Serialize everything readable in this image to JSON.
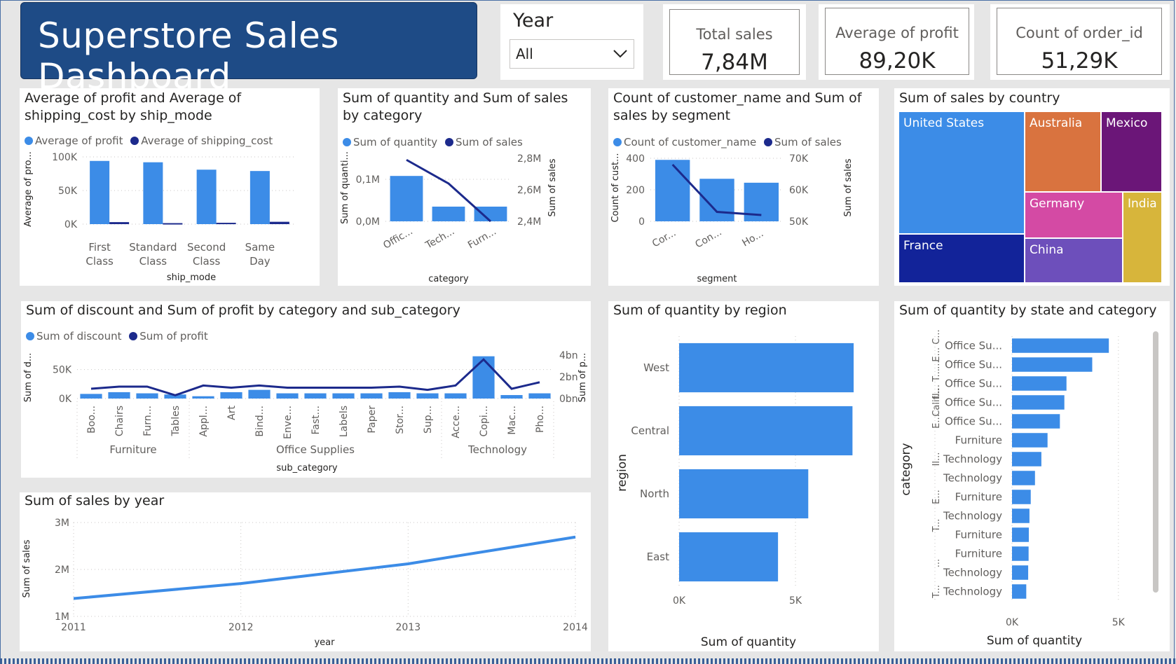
{
  "header": {
    "title": "Superstore Sales Dashboard"
  },
  "slicer": {
    "title": "Year",
    "value": "All"
  },
  "cards": [
    {
      "label": "Total sales",
      "value": "7,84M"
    },
    {
      "label": "Average of profit",
      "value": "89,20K"
    },
    {
      "label": "Count of order_id",
      "value": "51,29K"
    }
  ],
  "colors": {
    "primary": "#3c8ce7",
    "secondary": "#1c2a8c",
    "banner": "#1e4b86"
  },
  "visuals": {
    "shipmode": {
      "title": "Average of profit and Average of shipping_cost by ship_mode",
      "legend": [
        "Average of profit",
        "Average of shipping_cost"
      ],
      "xlabel": "ship_mode",
      "ylabel": "Average of pro...",
      "yticks": [
        "100K",
        "50K",
        "0K"
      ],
      "categories": [
        "First Class",
        "Standard Class",
        "Second Class",
        "Same Day"
      ]
    },
    "category": {
      "title": "Sum of quantity and Sum of sales by category",
      "legend": [
        "Sum of quantity",
        "Sum of sales"
      ],
      "xlabel": "category",
      "ylabel": "Sum of quanti...",
      "y2label": "Sum of sales",
      "yticks": [
        "0,1M",
        "0,0M"
      ],
      "y2ticks": [
        "2,8M",
        "2,6M",
        "2,4M"
      ],
      "categories": [
        "Offic...",
        "Tech...",
        "Furn..."
      ]
    },
    "segment": {
      "title": "Count of customer_name and Sum of sales by segment",
      "legend": [
        "Count of customer_name",
        "Sum of sales"
      ],
      "xlabel": "segment",
      "ylabel": "Count of cust...",
      "y2label": "Sum of sales",
      "yticks": [
        "400",
        "200",
        "0"
      ],
      "y2ticks": [
        "70K",
        "60K",
        "50K"
      ],
      "categories": [
        "Cor...",
        "Con...",
        "Ho..."
      ]
    },
    "country": {
      "title": "Sum of sales by country",
      "items": [
        {
          "name": "United States",
          "color": "#3c8ce7"
        },
        {
          "name": "Australia",
          "color": "#d9733f"
        },
        {
          "name": "Mexico",
          "color": "#6b1678"
        },
        {
          "name": "France",
          "color": "#122399"
        },
        {
          "name": "Germany",
          "color": "#d44aa4"
        },
        {
          "name": "India",
          "color": "#d7b53b"
        },
        {
          "name": "China",
          "color": "#6d4fbb"
        }
      ]
    },
    "subcat": {
      "title": "Sum of discount and Sum of profit by category and sub_category",
      "legend": [
        "Sum of discount",
        "Sum of profit"
      ],
      "xlabel": "sub_category",
      "ylabel": "Sum of d...",
      "y2label": "Sum of p...",
      "yticks": [
        "50K",
        "0K"
      ],
      "y2ticks": [
        "4bn",
        "2bn",
        "0bn"
      ],
      "groups": [
        "Furniture",
        "Office Supplies",
        "Technology"
      ],
      "categories": [
        "Boo...",
        "Chairs",
        "Furn...",
        "Tables",
        "Appl...",
        "Art",
        "Bind...",
        "Enve...",
        "Fast...",
        "Labels",
        "Paper",
        "Stor...",
        "Sup...",
        "Acce...",
        "Copi...",
        "Mac...",
        "Pho..."
      ]
    },
    "year": {
      "title": "Sum of sales by year",
      "xlabel": "year",
      "ylabel": "Sum of sales",
      "yticks": [
        "3M",
        "2M",
        "1M"
      ],
      "xticks": [
        "2011",
        "2012",
        "2013",
        "2014"
      ]
    },
    "region": {
      "title": "Sum of quantity by region",
      "xlabel": "Sum of quantity",
      "ylabel": "region",
      "xticks": [
        "0K",
        "5K"
      ],
      "categories": [
        "West",
        "Central",
        "North",
        "East"
      ]
    },
    "state": {
      "title": "Sum of quantity by state and category",
      "xlabel": "Sum of quantity",
      "ylabel": "category",
      "xticks": [
        "0K",
        "5K"
      ],
      "groups": [
        "E... C...",
        "...",
        "Il... T...",
        "Calif...",
        "E...",
        "Il...",
        "E...",
        "T...",
        "...",
        "T..."
      ],
      "categories": [
        "Office Su...",
        "Office Su...",
        "Office Su...",
        "Office Su...",
        "Office Su...",
        "Furniture",
        "Technology",
        "Technology",
        "Furniture",
        "Technology",
        "Furniture",
        "Furniture",
        "Technology",
        "Technology"
      ]
    }
  },
  "chart_data": [
    {
      "type": "bar",
      "title": "Average of profit and Average of shipping_cost by ship_mode",
      "categories": [
        "First Class",
        "Standard Class",
        "Second Class",
        "Same Day"
      ],
      "series": [
        {
          "name": "Average of profit",
          "values": [
            94000,
            92000,
            81000,
            79000
          ]
        },
        {
          "name": "Average of shipping_cost",
          "values": [
            3000,
            1500,
            2000,
            3500
          ]
        }
      ],
      "xlabel": "ship_mode",
      "ylabel": "Average of pro...",
      "ylim": [
        0,
        100000
      ]
    },
    {
      "type": "bar",
      "title": "Sum of quantity and Sum of sales by category",
      "categories": [
        "Offic...",
        "Tech...",
        "Furn..."
      ],
      "series": [
        {
          "name": "Sum of quantity",
          "values": [
            0.108,
            0.035,
            0.035
          ],
          "axis": "y"
        },
        {
          "name": "Sum of sales",
          "values": [
            2.79,
            2.64,
            2.4
          ],
          "axis": "y2",
          "render": "line"
        }
      ],
      "xlabel": "category",
      "ylabel": "Sum of quanti...",
      "y2label": "Sum of sales",
      "ylim": [
        0,
        0.15
      ],
      "y2lim": [
        2.4,
        2.8
      ]
    },
    {
      "type": "bar",
      "title": "Count of customer_name and Sum of sales by segment",
      "categories": [
        "Cor...",
        "Con...",
        "Ho..."
      ],
      "series": [
        {
          "name": "Count of customer_name",
          "values": [
            390,
            270,
            245
          ],
          "axis": "y"
        },
        {
          "name": "Sum of sales",
          "values": [
            68000,
            53000,
            52000
          ],
          "axis": "y2",
          "render": "line"
        }
      ],
      "xlabel": "segment",
      "ylabel": "Count of cust...",
      "y2label": "Sum of sales",
      "ylim": [
        0,
        400
      ],
      "y2lim": [
        50000,
        70000
      ]
    },
    {
      "type": "heatmap",
      "title": "Sum of sales by country",
      "categories": [
        "United States",
        "Australia",
        "Mexico",
        "France",
        "Germany",
        "India",
        "China"
      ],
      "values": [
        2297000,
        925000,
        622000,
        858000,
        628000,
        589000,
        579000
      ]
    },
    {
      "type": "bar",
      "title": "Sum of discount and Sum of profit by category and sub_category",
      "categories": [
        "Boo...",
        "Chairs",
        "Furn...",
        "Tables",
        "Appl...",
        "Art",
        "Bind...",
        "Enve...",
        "Fast...",
        "Labels",
        "Paper",
        "Stor...",
        "Sup...",
        "Acce...",
        "Copi...",
        "Mac...",
        "Pho..."
      ],
      "groups": [
        {
          "name": "Furniture",
          "count": 4
        },
        {
          "name": "Office Supplies",
          "count": 9
        },
        {
          "name": "Technology",
          "count": 4
        }
      ],
      "series": [
        {
          "name": "Sum of discount",
          "values": [
            8000,
            11000,
            9000,
            7000,
            4000,
            11000,
            15000,
            9000,
            9000,
            9000,
            9000,
            11000,
            9000,
            9000,
            73000,
            6000,
            9000
          ],
          "axis": "y"
        },
        {
          "name": "Sum of profit",
          "values": [
            0.9,
            1.1,
            1.1,
            0.3,
            1.2,
            1.0,
            1.2,
            1.0,
            1.0,
            1.0,
            1.0,
            1.1,
            0.8,
            1.2,
            3.6,
            0.9,
            1.5
          ],
          "axis": "y2",
          "render": "line"
        }
      ],
      "xlabel": "sub_category",
      "ylabel": "Sum of d...",
      "y2label": "Sum of p...",
      "ylim": [
        0,
        75000
      ],
      "y2lim": [
        0,
        4
      ]
    },
    {
      "type": "line",
      "title": "Sum of sales by year",
      "x": [
        2011,
        2012,
        2013,
        2014
      ],
      "series": [
        {
          "name": "Sum of sales",
          "values": [
            1380000,
            1700000,
            2120000,
            2690000
          ]
        }
      ],
      "xlabel": "year",
      "ylabel": "Sum of sales",
      "ylim": [
        1000000,
        3000000
      ]
    },
    {
      "type": "bar",
      "orientation": "horizontal",
      "title": "Sum of quantity by region",
      "categories": [
        "West",
        "Central",
        "North",
        "East"
      ],
      "values": [
        7500,
        7450,
        5550,
        4250
      ],
      "xlabel": "Sum of quantity",
      "ylabel": "region",
      "xlim": [
        0,
        7800
      ]
    },
    {
      "type": "bar",
      "orientation": "horizontal",
      "title": "Sum of quantity by state and category",
      "categories": [
        "Office Su...",
        "Office Su...",
        "Office Su...",
        "Office Su...",
        "Office Su...",
        "Furniture",
        "Technology",
        "Technology",
        "Furniture",
        "Technology",
        "Furniture",
        "Furniture",
        "Technology",
        "Technology"
      ],
      "values": [
        4550,
        3770,
        2560,
        2460,
        2250,
        1670,
        1380,
        1080,
        880,
        820,
        790,
        780,
        760,
        670
      ],
      "xlabel": "Sum of quantity",
      "ylabel": "category",
      "xlim": [
        0,
        5500
      ]
    }
  ]
}
